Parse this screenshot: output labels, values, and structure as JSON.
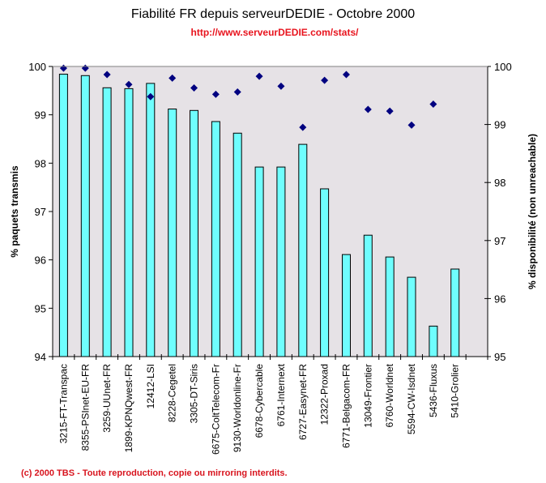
{
  "title": "Fiabilité FR depuis serveurDEDIE - Octobre 2000",
  "subtitle": "http://www.serveurDEDIE.com/stats/",
  "footer": "(c) 2000 TBS - Toute reproduction, copie ou mirroring interdits.",
  "colors": {
    "plot_background": "#e6e2e6",
    "bar_fill": "#6ffefe",
    "bar_stroke": "#000000",
    "marker": "#000080",
    "subtitle": "#e8141e"
  },
  "chart_data": {
    "type": "bar",
    "title": "Fiabilité FR depuis serveurDEDIE - Octobre 2000",
    "subtitle": "http://www.serveurDEDIE.com/stats/",
    "categories": [
      "3215-FT-Transpac",
      "8355-PSInet-EU-FR",
      "3259-UUnet-FR",
      "1899-KPNQwest-FR",
      "12412-LSI",
      "8228-Cegetel",
      "3305-DT-Siris",
      "6675-ColtTelecom-Fr",
      "9130-Worldonline-Fr",
      "6678-Cybercable",
      "6761-Internext",
      "6727-Easynet-FR",
      "12322-Proxad",
      "6771-Belgacom-FR",
      "13049-Frontier",
      "6760-Worldnet",
      "5594-CW-Isdnet",
      "5436-Fluxus",
      "5410-Grolier",
      ""
    ],
    "series": [
      {
        "name": "% paquets transmis",
        "type": "bar",
        "axis": "left",
        "values": [
          99.84,
          99.81,
          99.56,
          99.54,
          99.65,
          99.12,
          99.09,
          98.86,
          98.62,
          97.92,
          97.92,
          98.39,
          97.47,
          96.11,
          96.51,
          96.06,
          95.64,
          94.63,
          95.81,
          null
        ]
      },
      {
        "name": "% disponibilité (non unreachable)",
        "type": "scatter",
        "marker": "diamond",
        "axis": "right",
        "values": [
          99.97,
          99.97,
          99.86,
          99.69,
          99.48,
          99.8,
          99.63,
          99.52,
          99.56,
          99.83,
          99.66,
          98.95,
          99.76,
          99.86,
          99.26,
          99.23,
          98.99,
          99.35,
          null,
          null
        ]
      }
    ],
    "ylabel": "% paquets transmis",
    "ylim": [
      94,
      100
    ],
    "yticks": [
      "94",
      "95",
      "96",
      "97",
      "98",
      "99",
      "100"
    ],
    "y2label": "% disponibilité (non unreachable)",
    "y2lim": [
      95,
      100
    ],
    "y2ticks": [
      "95",
      "96",
      "97",
      "98",
      "99",
      "100"
    ],
    "xlabel": "",
    "grid": false,
    "legend": "none"
  }
}
